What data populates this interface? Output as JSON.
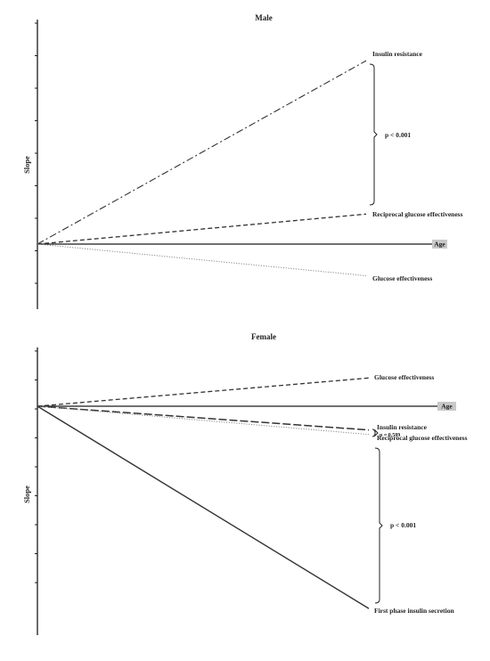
{
  "chart_data": [
    {
      "type": "line",
      "title": "Male",
      "ylabel": "Slope",
      "xlabel": "Age",
      "ylim": [
        -2,
        6
      ],
      "grid": false,
      "series": [
        {
          "name": "Insulin resistance",
          "x": [
            0,
            1
          ],
          "values": [
            0,
            5.8
          ],
          "style": "dash-dot",
          "color": "#333333"
        },
        {
          "name": "Reciprocal  glucose effectiveness",
          "x": [
            0,
            1
          ],
          "values": [
            0,
            0.95
          ],
          "style": "dashed",
          "color": "#333333"
        },
        {
          "name": "Glucose effectiveness",
          "x": [
            0,
            1
          ],
          "values": [
            0,
            -1.0
          ],
          "style": "dotted",
          "color": "#888888"
        }
      ],
      "annotations": [
        {
          "text": "p < 0.001",
          "between": [
            "Insulin resistance",
            "Reciprocal  glucose effectiveness"
          ]
        }
      ]
    },
    {
      "type": "line",
      "title": "Female",
      "ylabel": "Slope",
      "xlabel": "Age",
      "ylim": [
        -7,
        2
      ],
      "grid": false,
      "series": [
        {
          "name": "Glucose effectiveness",
          "x": [
            0,
            1
          ],
          "values": [
            0,
            0.95
          ],
          "style": "dashed",
          "color": "#333333"
        },
        {
          "name": "Insulin resistance",
          "x": [
            0,
            1
          ],
          "values": [
            0,
            -0.8
          ],
          "style": "long-dash",
          "color": "#333333"
        },
        {
          "name": "Reciprocal  glucose effectiveness",
          "x": [
            0,
            1
          ],
          "values": [
            0,
            -0.95
          ],
          "style": "dotted",
          "color": "#888888"
        },
        {
          "name": "First phase  insulin secretion",
          "x": [
            0,
            1
          ],
          "values": [
            0,
            -6.8
          ],
          "style": "solid",
          "color": "#333333"
        }
      ],
      "annotations": [
        {
          "text": "p = 0.589",
          "between": [
            "Insulin resistance",
            "Reciprocal  glucose effectiveness"
          ]
        },
        {
          "text": "p < 0.001",
          "between": [
            "Reciprocal  glucose effectiveness",
            "First phase  insulin secretion"
          ]
        }
      ]
    }
  ]
}
